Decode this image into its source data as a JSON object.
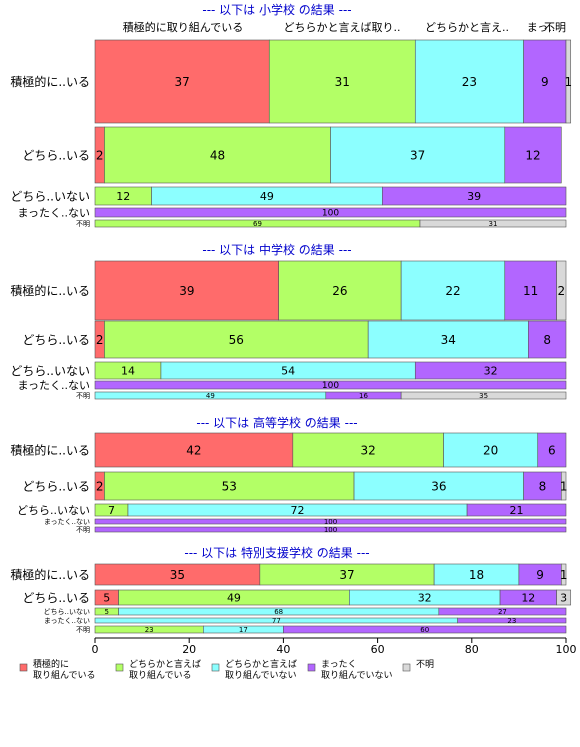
{
  "chart_data": {
    "type": "bar",
    "orientation": "horizontal",
    "stacked": "percent",
    "xlim": [
      0,
      100
    ],
    "xticks": [
      0,
      20,
      40,
      60,
      80,
      100
    ],
    "grid": false,
    "legend_position": "bottom-left",
    "column_headers": [
      "積極的に取り組んでいる",
      "どちらかと言えば取り..",
      "どちらかと言え..",
      "まっ..",
      "不明"
    ],
    "categories": [
      {
        "key": "c1",
        "legend": [
          "積極的に",
          "取り組んでいる"
        ],
        "color": "#ff6b6b"
      },
      {
        "key": "c2",
        "legend": [
          "どちらかと言えば",
          "取り組んでいる"
        ],
        "color": "#b3ff66"
      },
      {
        "key": "c3",
        "legend": [
          "どちらかと言えば",
          "取り組んでいない"
        ],
        "color": "#8cffff"
      },
      {
        "key": "c4",
        "legend": [
          "まったく",
          "取り組んでいない"
        ],
        "color": "#b266ff"
      },
      {
        "key": "c5",
        "legend": [
          "不明"
        ],
        "color": "#d9d9d9"
      }
    ],
    "sections": [
      {
        "title": "--- 以下は 小学校 の結果 ---",
        "rows": [
          {
            "label": "積極的に..いる",
            "values": [
              37,
              31,
              23,
              9,
              1
            ]
          },
          {
            "label": "どちら..いる",
            "values": [
              2,
              48,
              37,
              12,
              0
            ]
          },
          {
            "label": "どちら..いない",
            "values": [
              0,
              12,
              49,
              39,
              0
            ]
          },
          {
            "label": "まったく..ない",
            "values": [
              0,
              0,
              0,
              100,
              0
            ]
          },
          {
            "label": "不明",
            "values": [
              0,
              69,
              0,
              0,
              31
            ]
          }
        ]
      },
      {
        "title": "--- 以下は 中学校 の結果 ---",
        "rows": [
          {
            "label": "積極的に..いる",
            "values": [
              39,
              26,
              22,
              11,
              2
            ]
          },
          {
            "label": "どちら..いる",
            "values": [
              2,
              56,
              34,
              8,
              0
            ]
          },
          {
            "label": "どちら..いない",
            "values": [
              0,
              14,
              54,
              32,
              0
            ]
          },
          {
            "label": "まったく..ない",
            "values": [
              0,
              0,
              0,
              100,
              0
            ]
          },
          {
            "label": "不明",
            "values": [
              0,
              0,
              49,
              16,
              35
            ]
          }
        ]
      },
      {
        "title": "--- 以下は 高等学校 の結果 ---",
        "rows": [
          {
            "label": "積極的に..いる",
            "values": [
              42,
              32,
              20,
              6,
              0
            ]
          },
          {
            "label": "どちら..いる",
            "values": [
              2,
              53,
              36,
              8,
              1
            ]
          },
          {
            "label": "どちら..いない",
            "values": [
              0,
              7,
              72,
              21,
              0
            ]
          },
          {
            "label": "まったく..ない",
            "values": [
              0,
              0,
              0,
              100,
              0
            ]
          },
          {
            "label": "不明",
            "values": [
              0,
              0,
              0,
              100,
              0
            ]
          }
        ]
      },
      {
        "title": "--- 以下は 特別支援学校 の結果 ---",
        "rows": [
          {
            "label": "積極的に..いる",
            "values": [
              35,
              37,
              18,
              9,
              1
            ]
          },
          {
            "label": "どちら..いる",
            "values": [
              5,
              49,
              32,
              12,
              3
            ]
          },
          {
            "label": "どちら..いない",
            "values": [
              0,
              5,
              68,
              27,
              0
            ]
          },
          {
            "label": "まったく..ない",
            "values": [
              0,
              0,
              77,
              23,
              0
            ]
          },
          {
            "label": "不明",
            "values": [
              0,
              23,
              17,
              60,
              0
            ]
          }
        ]
      }
    ]
  }
}
